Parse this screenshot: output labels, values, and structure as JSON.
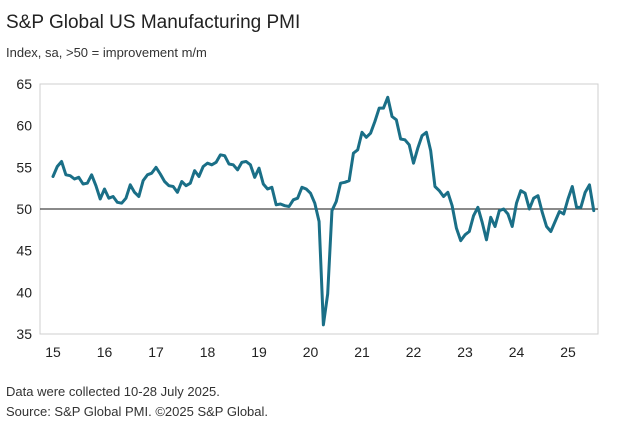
{
  "title": "S&P Global US Manufacturing PMI",
  "subtitle": "Index, sa, >50 = improvement m/m",
  "footnotes": [
    "Data were collected 10-28 July 2025.",
    "Source: S&P Global PMI. ©2025 S&P Global."
  ],
  "colors": {
    "line": "#1a6f87",
    "axis": "#222222",
    "baseline": "#444444",
    "border": "#cfcfcf"
  },
  "chart_data": {
    "type": "line",
    "title": "S&P Global US Manufacturing PMI",
    "subtitle": "Index, sa, >50 = improvement m/m",
    "ylim": [
      35,
      65
    ],
    "yticks": [
      35,
      40,
      45,
      50,
      55,
      60,
      65
    ],
    "x_tick_labels": [
      "15",
      "16",
      "17",
      "18",
      "19",
      "20",
      "21",
      "22",
      "23",
      "24",
      "25"
    ],
    "x_start": "2015-01",
    "x_end": "2025-07",
    "reference_line": 50,
    "grid": false,
    "legend": "none",
    "series": [
      {
        "values": [
          53.9,
          55.1,
          55.7,
          54.1,
          54.0,
          53.6,
          53.8,
          53.0,
          53.1,
          54.1,
          52.8,
          51.2,
          52.4,
          51.3,
          51.5,
          50.8,
          50.7,
          51.3,
          52.9,
          52.0,
          51.5,
          53.4,
          54.1,
          54.3,
          55.0,
          54.2,
          53.3,
          52.8,
          52.7,
          52.0,
          53.3,
          52.8,
          53.1,
          54.6,
          53.9,
          55.1,
          55.5,
          55.3,
          55.6,
          56.5,
          56.4,
          55.4,
          55.3,
          54.7,
          55.6,
          55.7,
          55.3,
          53.8,
          54.9,
          53.0,
          52.4,
          52.6,
          50.5,
          50.6,
          50.4,
          50.3,
          51.1,
          51.3,
          52.6,
          52.4,
          51.9,
          50.7,
          48.5,
          36.1,
          39.8,
          49.8,
          50.9,
          53.1,
          53.2,
          53.4,
          56.7,
          57.1,
          59.2,
          58.6,
          59.1,
          60.5,
          62.1,
          62.1,
          63.4,
          61.1,
          60.7,
          58.4,
          58.3,
          57.7,
          55.5,
          57.3,
          58.8,
          59.2,
          57.0,
          52.7,
          52.2,
          51.5,
          52.0,
          50.4,
          47.7,
          46.2,
          46.9,
          47.3,
          49.2,
          50.2,
          48.4,
          46.3,
          49.0,
          47.9,
          49.8,
          50.0,
          49.4,
          47.9,
          50.7,
          52.2,
          51.9,
          50.0,
          51.3,
          51.6,
          49.6,
          47.9,
          47.3,
          48.5,
          49.7,
          49.4,
          51.2,
          52.7,
          50.2,
          50.2,
          52.0,
          52.9,
          49.8
        ]
      }
    ]
  }
}
